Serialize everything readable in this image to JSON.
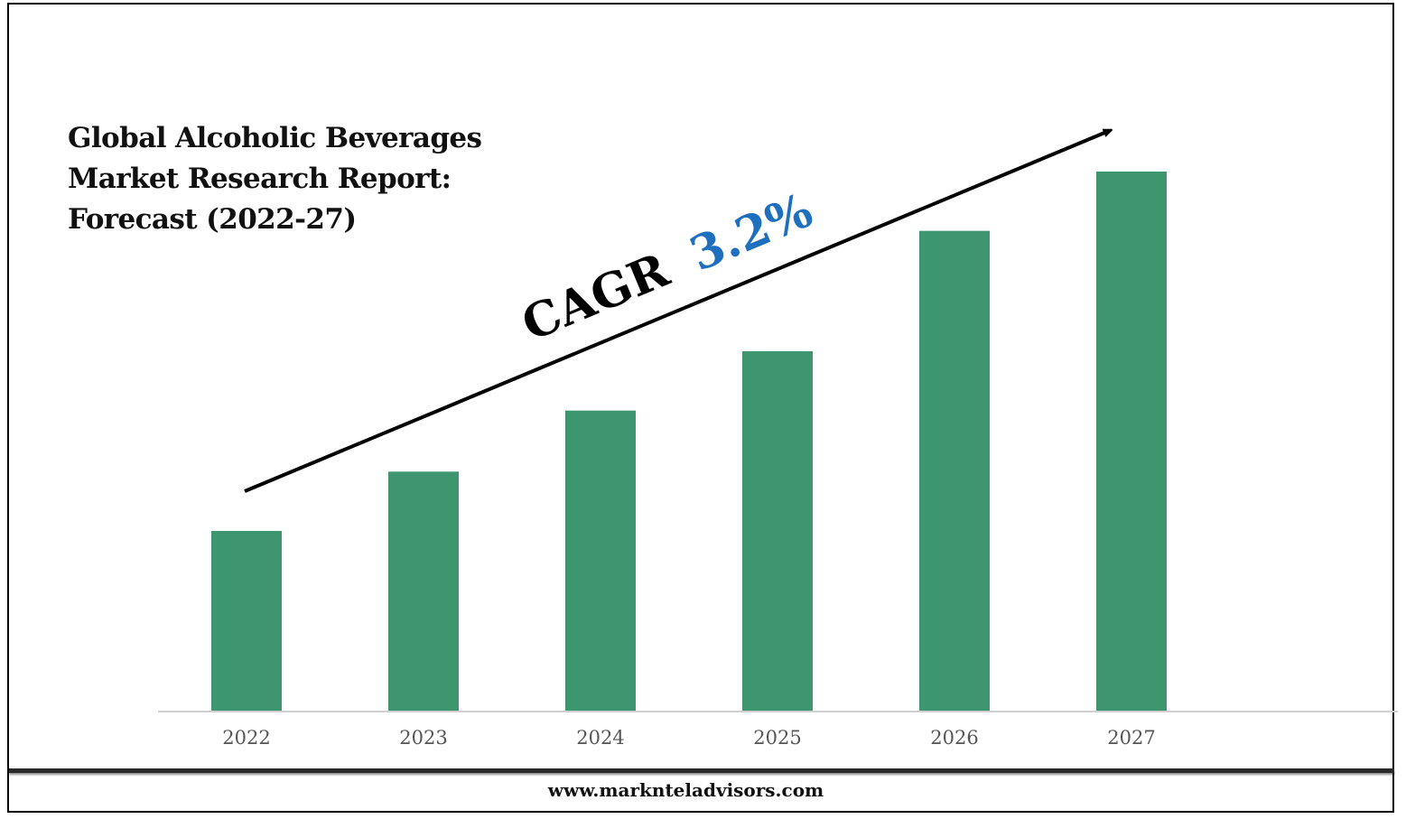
{
  "title_lines": [
    "Global Alcoholic Beverages",
    "Market Research Report:",
    "Forecast (2022-27)"
  ],
  "cagr": {
    "label": "CAGR",
    "value": "3.2%",
    "value_color": "#1f6fbf"
  },
  "footer": {
    "website": "www.marknteladvisors.com"
  },
  "colors": {
    "bar": "#3d9670",
    "axis": "#d0d0d0",
    "tick_label": "#555555"
  },
  "chart_data": {
    "type": "bar",
    "categories": [
      "2022",
      "2023",
      "2024",
      "2025",
      "2026",
      "2027"
    ],
    "values": [
      1.0,
      1.33,
      1.67,
      2.0,
      2.67,
      3.0
    ],
    "title": "Global Alcoholic Beverages Market Research Report: Forecast (2022-27)",
    "xlabel": "",
    "ylabel": "",
    "ylim": [
      0,
      3
    ],
    "grid": false,
    "legend": "none",
    "annotation": "CAGR 3.2%"
  }
}
